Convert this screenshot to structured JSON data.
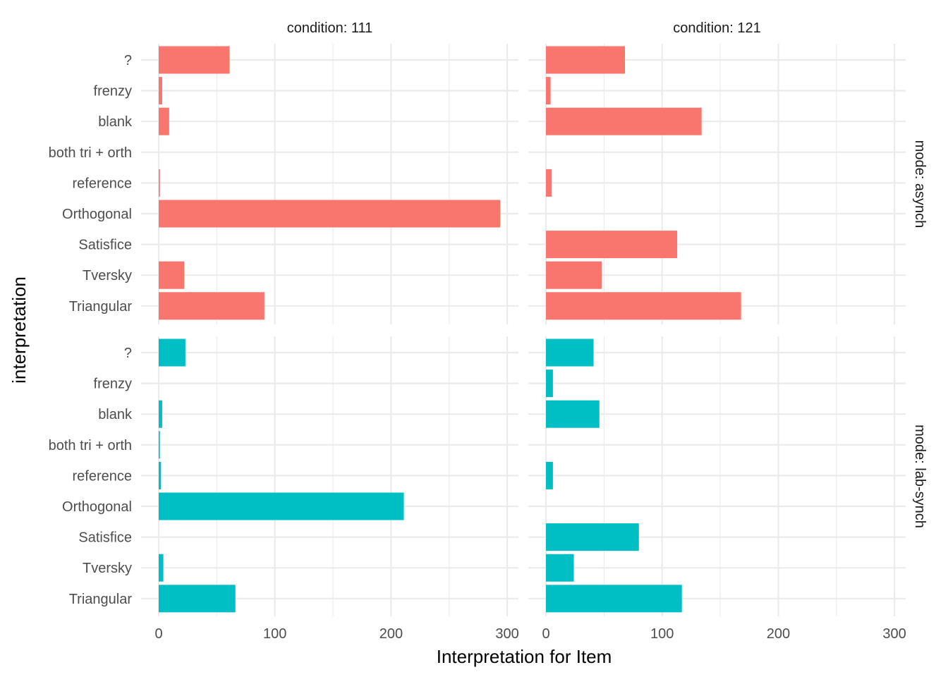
{
  "chart_data": {
    "type": "bar",
    "orientation": "horizontal",
    "facet_layout": "grid",
    "xlabel": "Interpretation for Item",
    "ylabel": "interpretation",
    "xlim": [
      0,
      300
    ],
    "x_ticks": [
      "0",
      "100",
      "200",
      "300"
    ],
    "grid": true,
    "legend": "none",
    "categories": [
      "?",
      "frenzy",
      "blank",
      "both tri + orth",
      "reference",
      "Orthogonal",
      "Satisfice",
      "Tversky",
      "Triangular"
    ],
    "columns": [
      "condition: 111",
      "condition: 121"
    ],
    "rows": [
      "mode: asynch",
      "mode: lab-synch"
    ],
    "colors": {
      "mode: asynch": "#F8766D",
      "mode: lab-synch": "#00BFC4"
    },
    "panels": [
      {
        "row": "mode: asynch",
        "column": "condition: 111",
        "values": [
          61,
          3,
          9,
          0,
          1,
          294,
          0,
          22,
          91
        ]
      },
      {
        "row": "mode: asynch",
        "column": "condition: 121",
        "values": [
          68,
          4,
          134,
          0,
          5,
          0,
          113,
          48,
          168
        ]
      },
      {
        "row": "mode: lab-synch",
        "column": "condition: 111",
        "values": [
          23,
          0,
          3,
          1,
          2,
          211,
          0,
          4,
          66
        ]
      },
      {
        "row": "mode: lab-synch",
        "column": "condition: 121",
        "values": [
          41,
          6,
          46,
          0,
          6,
          0,
          80,
          24,
          117
        ]
      }
    ]
  }
}
